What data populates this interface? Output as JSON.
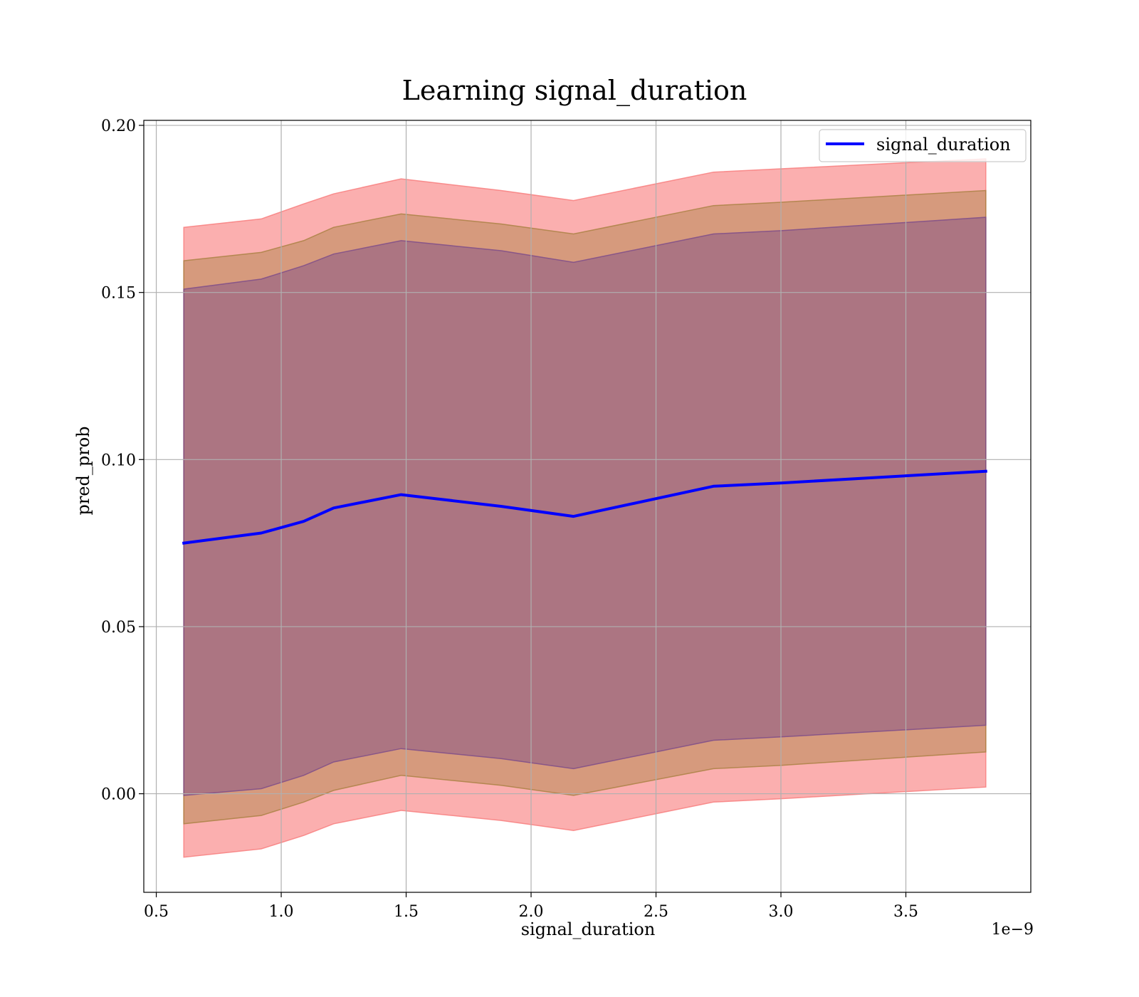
{
  "chart_data": {
    "type": "line",
    "title": "Learning signal_duration",
    "xlabel": "signal_duration",
    "ylabel": "pred_prob",
    "x_offset_text": "1e−9",
    "xlim": [
      0.45,
      4.0
    ],
    "ylim": [
      -0.0295,
      0.2015
    ],
    "x_ticks": [
      0.5,
      1.0,
      1.5,
      2.0,
      2.5,
      3.0,
      3.5
    ],
    "x_tick_labels": [
      "0.5",
      "1.0",
      "1.5",
      "2.0",
      "2.5",
      "3.0",
      "3.5"
    ],
    "y_ticks": [
      0.0,
      0.05,
      0.1,
      0.15,
      0.2
    ],
    "y_tick_labels": [
      "0.00",
      "0.05",
      "0.10",
      "0.15",
      "0.20"
    ],
    "grid": true,
    "legend_position": "top-right",
    "x": [
      0.61,
      0.92,
      1.09,
      1.21,
      1.48,
      1.88,
      2.17,
      2.73,
      3.0,
      3.82
    ],
    "series": [
      {
        "name": "signal_duration",
        "color": "#0000ff",
        "values": [
          0.075,
          0.078,
          0.0815,
          0.0855,
          0.0895,
          0.086,
          0.083,
          0.092,
          0.093,
          0.0965
        ]
      }
    ],
    "bands": [
      {
        "color": "#f87979",
        "opacity": 0.6,
        "lower": [
          -0.019,
          -0.0165,
          -0.0125,
          -0.009,
          -0.005,
          -0.008,
          -0.011,
          -0.0025,
          -0.0015,
          0.002
        ],
        "upper": [
          0.1695,
          0.172,
          0.1765,
          0.1795,
          0.184,
          0.1805,
          0.1775,
          0.186,
          0.187,
          0.19
        ]
      },
      {
        "color": "#a88040",
        "opacity": 0.45,
        "lower": [
          -0.009,
          -0.0065,
          -0.0025,
          0.001,
          0.0055,
          0.0025,
          -0.0005,
          0.0075,
          0.0085,
          0.0125
        ],
        "upper": [
          0.1595,
          0.162,
          0.1655,
          0.1695,
          0.1735,
          0.1705,
          0.1675,
          0.176,
          0.177,
          0.1805
        ]
      },
      {
        "color": "#7a4a8a",
        "opacity": 0.45,
        "lower": [
          -0.0005,
          0.0015,
          0.0055,
          0.0095,
          0.0135,
          0.0105,
          0.0075,
          0.016,
          0.017,
          0.0205
        ],
        "upper": [
          0.151,
          0.154,
          0.158,
          0.1615,
          0.1655,
          0.1625,
          0.159,
          0.1675,
          0.1685,
          0.1725
        ]
      }
    ]
  }
}
